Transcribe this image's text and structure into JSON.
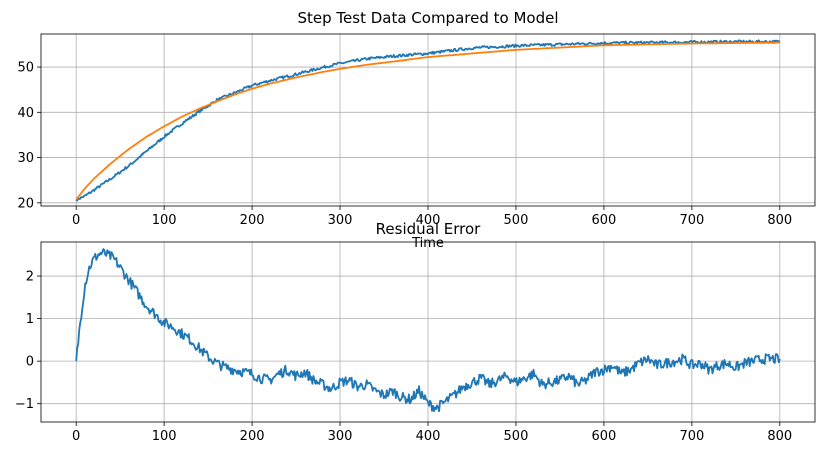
{
  "chart_data": [
    {
      "type": "line",
      "title": "Step Test Data Compared to Model",
      "xlabel": "Time",
      "ylabel": "",
      "xlim": [
        -40,
        840
      ],
      "ylim": [
        19.3,
        57.3
      ],
      "xticks": [
        0,
        100,
        200,
        300,
        400,
        500,
        600,
        700,
        800
      ],
      "yticks": [
        20,
        30,
        40,
        50
      ],
      "grid": true,
      "colors": {
        "data": "#1f77b4",
        "model": "#ff7f0e"
      },
      "series": [
        {
          "key": "data",
          "x": [
            0,
            10,
            20,
            40,
            60,
            80,
            100,
            120,
            140,
            160,
            180,
            200,
            220,
            250,
            280,
            300,
            330,
            360,
            400,
            450,
            500,
            550,
            600,
            650,
            700,
            750,
            800
          ],
          "y": [
            20.7,
            21.5,
            22.8,
            25.4,
            28.2,
            31.4,
            34.6,
            37.5,
            40.2,
            42.7,
            44.3,
            45.9,
            47.0,
            48.4,
            49.9,
            50.8,
            51.8,
            52.4,
            53.0,
            54.2,
            54.7,
            55.0,
            55.3,
            55.4,
            55.5,
            55.6,
            55.6
          ],
          "noise": 0.3
        },
        {
          "key": "model",
          "x": [
            0,
            10,
            20,
            40,
            60,
            80,
            100,
            120,
            140,
            160,
            180,
            200,
            220,
            250,
            280,
            300,
            330,
            360,
            400,
            450,
            500,
            550,
            600,
            650,
            700,
            750,
            800
          ],
          "y": [
            20.7,
            23.2,
            25.3,
            28.8,
            31.9,
            34.6,
            36.9,
            39.0,
            40.8,
            42.4,
            43.9,
            45.2,
            46.3,
            47.7,
            48.9,
            49.6,
            50.5,
            51.2,
            52.2,
            53.0,
            53.8,
            54.3,
            54.8,
            55.0,
            55.2,
            55.3,
            55.4
          ]
        }
      ]
    },
    {
      "type": "line",
      "title": "Residual Error",
      "xlabel": "",
      "ylabel": "",
      "xlim": [
        -40,
        840
      ],
      "ylim": [
        -1.43,
        2.8
      ],
      "xticks": [
        0,
        100,
        200,
        300,
        400,
        500,
        600,
        700,
        800
      ],
      "yticks": [
        -1,
        0,
        1,
        2
      ],
      "grid": true,
      "colors": {
        "residual": "#1f77b4"
      },
      "series": [
        {
          "key": "residual",
          "x": [
            0,
            5,
            10,
            15,
            20,
            25,
            30,
            35,
            40,
            45,
            50,
            60,
            70,
            80,
            90,
            100,
            110,
            120,
            130,
            140,
            150,
            160,
            170,
            180,
            190,
            200,
            210,
            220,
            230,
            240,
            250,
            260,
            270,
            280,
            290,
            300,
            310,
            320,
            330,
            340,
            350,
            360,
            370,
            380,
            390,
            400,
            410,
            420,
            430,
            440,
            450,
            460,
            470,
            480,
            490,
            500,
            510,
            520,
            530,
            540,
            550,
            560,
            570,
            580,
            590,
            600,
            610,
            620,
            630,
            640,
            650,
            660,
            670,
            680,
            690,
            700,
            710,
            720,
            730,
            740,
            750,
            760,
            770,
            780,
            790,
            800
          ],
          "y": [
            0.0,
            1.0,
            1.8,
            2.2,
            2.4,
            2.5,
            2.55,
            2.5,
            2.45,
            2.35,
            2.2,
            1.9,
            1.6,
            1.3,
            1.1,
            0.9,
            0.8,
            0.65,
            0.5,
            0.3,
            0.1,
            -0.05,
            -0.15,
            -0.2,
            -0.25,
            -0.3,
            -0.4,
            -0.45,
            -0.3,
            -0.2,
            -0.35,
            -0.25,
            -0.45,
            -0.55,
            -0.65,
            -0.5,
            -0.45,
            -0.6,
            -0.55,
            -0.7,
            -0.8,
            -0.7,
            -0.85,
            -0.9,
            -0.7,
            -1.0,
            -1.1,
            -0.95,
            -0.8,
            -0.6,
            -0.5,
            -0.4,
            -0.55,
            -0.45,
            -0.35,
            -0.5,
            -0.4,
            -0.3,
            -0.55,
            -0.5,
            -0.45,
            -0.35,
            -0.55,
            -0.45,
            -0.25,
            -0.2,
            -0.1,
            -0.3,
            -0.2,
            -0.05,
            0.05,
            -0.1,
            -0.05,
            0.0,
            0.05,
            -0.1,
            -0.05,
            -0.2,
            -0.1,
            -0.05,
            -0.15,
            -0.05,
            0.0,
            0.05,
            0.05,
            0.05
          ],
          "noise": 0.12
        }
      ]
    }
  ]
}
